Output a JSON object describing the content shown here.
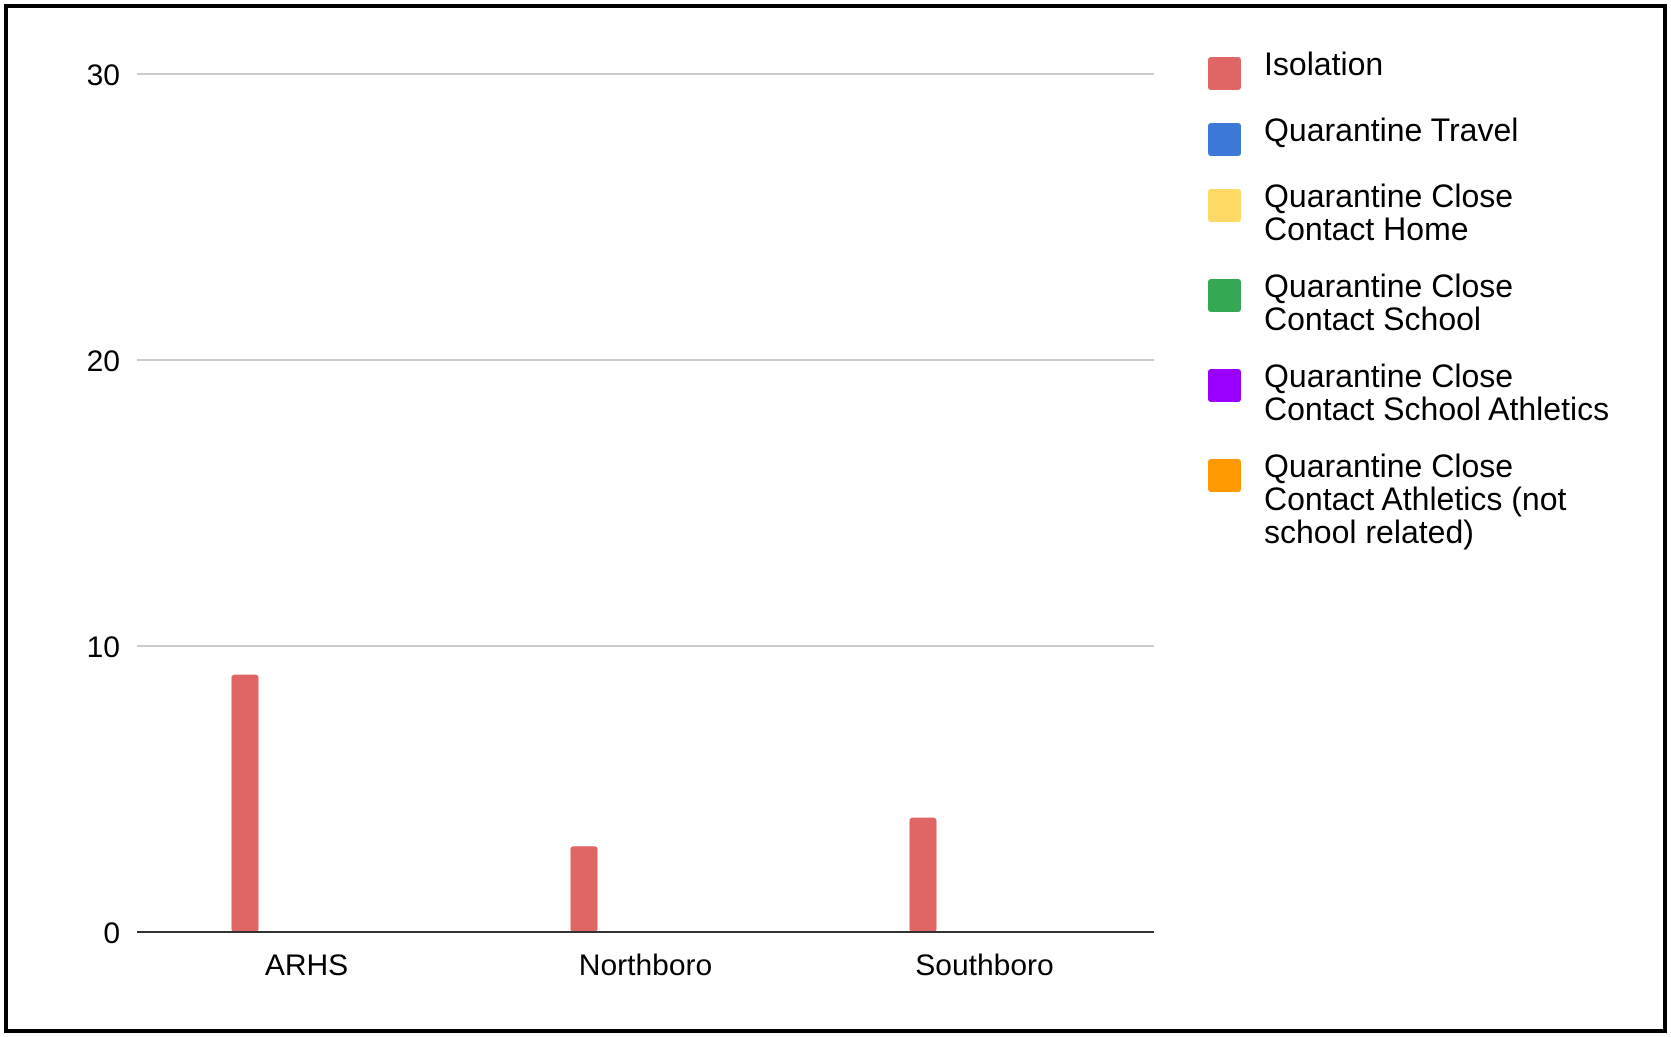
{
  "chart_data": {
    "type": "bar",
    "categories": [
      "ARHS",
      "Northboro",
      "Southboro"
    ],
    "series": [
      {
        "name": "Isolation",
        "color": "#e06666",
        "values": [
          9,
          3,
          4
        ]
      },
      {
        "name": "Quarantine Travel",
        "color": "#3c78d8",
        "values": [
          0,
          0,
          0
        ]
      },
      {
        "name": "Quarantine Close Contact Home",
        "color": "#ffd966",
        "values": [
          0,
          0,
          0
        ]
      },
      {
        "name": "Quarantine Close Contact School",
        "color": "#34a853",
        "values": [
          0,
          0,
          0
        ]
      },
      {
        "name": "Quarantine Close Contact School Athletics",
        "color": "#9900ff",
        "values": [
          0,
          0,
          0
        ]
      },
      {
        "name": "Quarantine Close Contact Athletics (not school related)",
        "color": "#ff9900",
        "values": [
          0,
          0,
          0
        ]
      }
    ],
    "yticks": [
      "0",
      "10",
      "20",
      "30"
    ],
    "ylim": [
      0,
      30
    ],
    "grid": true,
    "legend_position": "right",
    "title": "",
    "xlabel": "",
    "ylabel": ""
  }
}
